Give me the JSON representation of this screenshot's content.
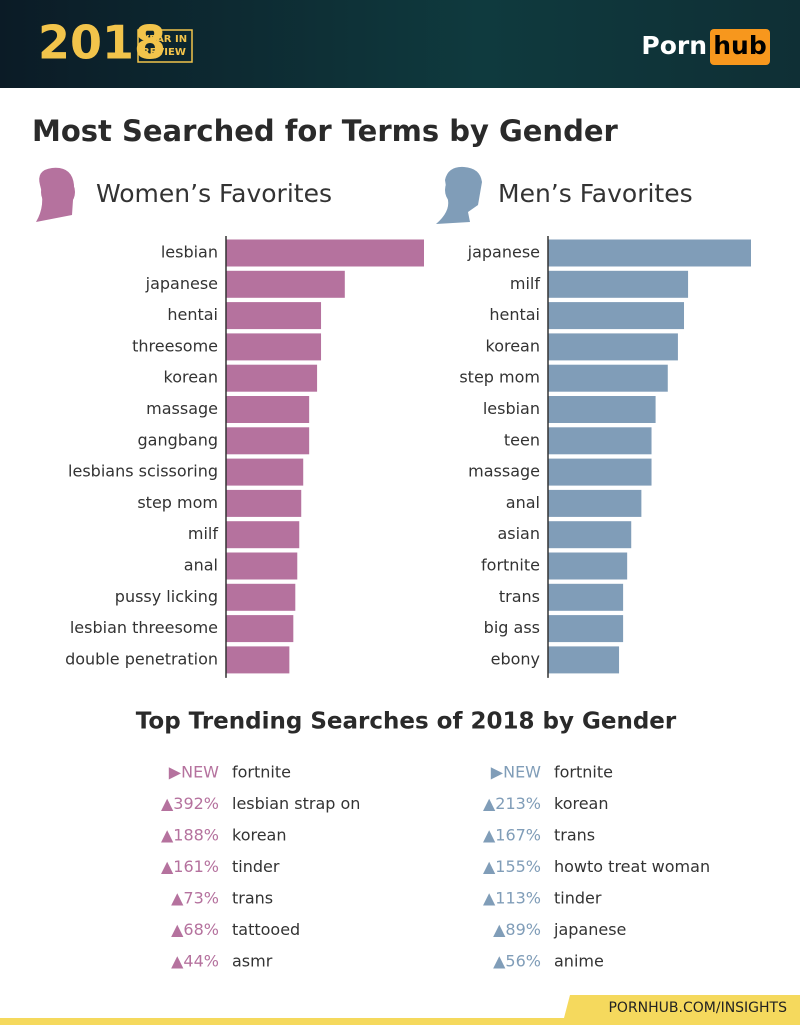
{
  "header": {
    "year": "2018",
    "badge_line_1": "YEAR IN",
    "badge_line_2": "REVIEW",
    "brand_1": "Porn",
    "brand_2": "hub"
  },
  "title": "Most Searched for Terms by Gender",
  "chart_data": [
    {
      "type": "bar",
      "orientation": "horizontal",
      "title": "Women’s Favorites",
      "color": "#b5729e",
      "categories": [
        "lesbian",
        "japanese",
        "hentai",
        "threesome",
        "korean",
        "massage",
        "gangbang",
        "lesbians scissoring",
        "step mom",
        "milf",
        "anal",
        "pussy licking",
        "lesbian threesome",
        "double penetration"
      ],
      "values": [
        100,
        60,
        48,
        48,
        46,
        42,
        42,
        39,
        38,
        37,
        36,
        35,
        34,
        32
      ],
      "xlim": [
        0,
        100
      ]
    },
    {
      "type": "bar",
      "orientation": "horizontal",
      "title": "Men’s Favorites",
      "color": "#809db8",
      "categories": [
        "japanese",
        "milf",
        "hentai",
        "korean",
        "step mom",
        "lesbian",
        "teen",
        "massage",
        "anal",
        "asian",
        "fortnite",
        "trans",
        "big ass",
        "ebony"
      ],
      "values": [
        100,
        69,
        67,
        64,
        59,
        53,
        51,
        51,
        46,
        41,
        39,
        37,
        37,
        35
      ],
      "xlim": [
        0,
        100
      ]
    }
  ],
  "trending": {
    "title": "Top Trending Searches of 2018 by Gender",
    "women": [
      {
        "change": "▶NEW",
        "term": "fortnite"
      },
      {
        "change": "▲392%",
        "term": "lesbian strap on"
      },
      {
        "change": "▲188%",
        "term": "korean"
      },
      {
        "change": "▲161%",
        "term": "tinder"
      },
      {
        "change": "▲73%",
        "term": "trans"
      },
      {
        "change": "▲68%",
        "term": "tattooed"
      },
      {
        "change": "▲44%",
        "term": "asmr"
      }
    ],
    "men": [
      {
        "change": "▶NEW",
        "term": "fortnite"
      },
      {
        "change": "▲213%",
        "term": "korean"
      },
      {
        "change": "▲167%",
        "term": "trans"
      },
      {
        "change": "▲155%",
        "term": "howto treat woman"
      },
      {
        "change": "▲113%",
        "term": "tinder"
      },
      {
        "change": "▲89%",
        "term": "japanese"
      },
      {
        "change": "▲56%",
        "term": "anime"
      }
    ]
  },
  "footer": "PORNHUB.COM/INSIGHTS"
}
